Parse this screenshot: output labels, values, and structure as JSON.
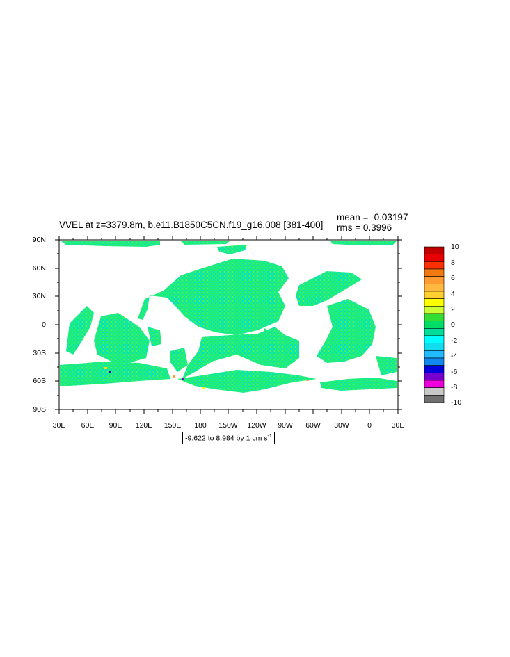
{
  "title": "VVEL at z=3379.8m, b.e11.B1850C5CN.f19_g16.008 [381-400]",
  "stats": {
    "mean": "mean = -0.03197",
    "rms": "rms = 0.3996"
  },
  "map": {
    "projection": "cylindrical equidistant",
    "center_longitude": "210 (150W)",
    "land_color": "#ffffff",
    "ocean_fill": "ocean velocity field (mostly green/cyan near zero)",
    "latitude_labels": [
      "90N",
      "60N",
      "30N",
      "0",
      "30S",
      "60S",
      "90S"
    ],
    "longitude_labels": [
      "30E",
      "60E",
      "90E",
      "120E",
      "150E",
      "180",
      "150W",
      "120W",
      "90W",
      "60W",
      "30W",
      "0",
      "30E"
    ]
  },
  "range_text": "-9.622 to 8.984 by 1 cm s",
  "range_unit_exponent": "-1",
  "colorbar": {
    "labels": [
      "10",
      "8",
      "6",
      "4",
      "2",
      "0",
      "-2",
      "-4",
      "-6",
      "-8",
      "-10"
    ],
    "colors": [
      "#c00000",
      "#e80000",
      "#ff3000",
      "#f07a10",
      "#ff9b30",
      "#ffb940",
      "#ffd030",
      "#ffff00",
      "#ccff33",
      "#33dd33",
      "#00dd66",
      "#00dd99",
      "#00ffff",
      "#11ddee",
      "#22bbff",
      "#1188ee",
      "#0000dd",
      "#7700cc",
      "#ee00dd",
      "#c8c8c8",
      "#707070"
    ]
  }
}
